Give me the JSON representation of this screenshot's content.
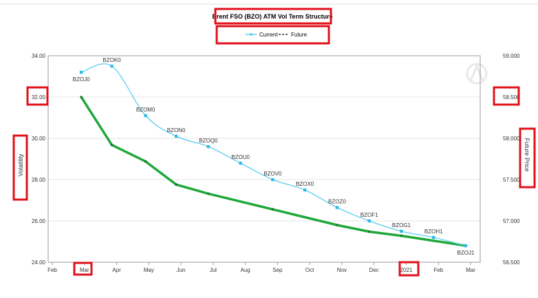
{
  "chart_data": {
    "type": "line",
    "title": "Brent FSO (BZO) ATM Vol Term Structure",
    "legend": [
      "Current",
      "Future"
    ],
    "legend_position": "top",
    "ylabel_left": "Volatility",
    "ylabel_right": "Future Price",
    "x_ticks": [
      "Feb",
      "Mar",
      "Apr",
      "May",
      "Jun",
      "Jul",
      "Aug",
      "Sep",
      "Oct",
      "Nov",
      "Dec",
      "2021",
      "Feb",
      "Mar"
    ],
    "y_left_ticks": [
      "34.00",
      "32.00",
      "30.00",
      "28.00",
      "26.00",
      "24.00"
    ],
    "y_right_ticks": [
      "59.000",
      "58.500",
      "58.000",
      "57.500",
      "57.000",
      "56.500"
    ],
    "y_left_range": [
      24,
      34
    ],
    "y_right_range": [
      56.5,
      59
    ],
    "grid": "horizontal",
    "series": [
      {
        "name": "Current",
        "axis": "left",
        "color": "#5bcdf0",
        "points": [
          {
            "x": 0.9,
            "y": 33.2,
            "label": "BZOJ0"
          },
          {
            "x": 1.85,
            "y": 33.5,
            "label": "BZOK0"
          },
          {
            "x": 2.9,
            "y": 31.1,
            "label": "BZOM0"
          },
          {
            "x": 3.85,
            "y": 30.1,
            "label": "BZON0"
          },
          {
            "x": 4.85,
            "y": 29.6,
            "label": "BZOQ0"
          },
          {
            "x": 5.85,
            "y": 28.8,
            "label": "BZOU0"
          },
          {
            "x": 6.85,
            "y": 28.0,
            "label": "BZOV0"
          },
          {
            "x": 7.85,
            "y": 27.5,
            "label": "BZOX0"
          },
          {
            "x": 8.85,
            "y": 26.65,
            "label": "BZOZ0"
          },
          {
            "x": 9.85,
            "y": 26.0,
            "label": "BZOF1"
          },
          {
            "x": 10.85,
            "y": 25.5,
            "label": "BZOG1"
          },
          {
            "x": 11.85,
            "y": 25.2,
            "label": "BZOH1"
          },
          {
            "x": 12.85,
            "y": 24.8,
            "label": "BZOJ1"
          }
        ]
      },
      {
        "name": "Future",
        "axis": "right",
        "color": "#1fa83a",
        "points": [
          {
            "x": 0.9,
            "y": 58.5
          },
          {
            "x": 1.85,
            "y": 57.92
          },
          {
            "x": 2.9,
            "y": 57.72
          },
          {
            "x": 3.85,
            "y": 57.44
          },
          {
            "x": 4.85,
            "y": 57.33
          },
          {
            "x": 6.85,
            "y": 57.14
          },
          {
            "x": 8.85,
            "y": 56.95
          },
          {
            "x": 9.85,
            "y": 56.87
          },
          {
            "x": 10.85,
            "y": 56.82
          },
          {
            "x": 12.85,
            "y": 56.7
          }
        ]
      }
    ]
  },
  "style": {
    "highlight_color": "#e0101a",
    "grid_color": "#e4e4e4",
    "axis_color": "#999999"
  }
}
